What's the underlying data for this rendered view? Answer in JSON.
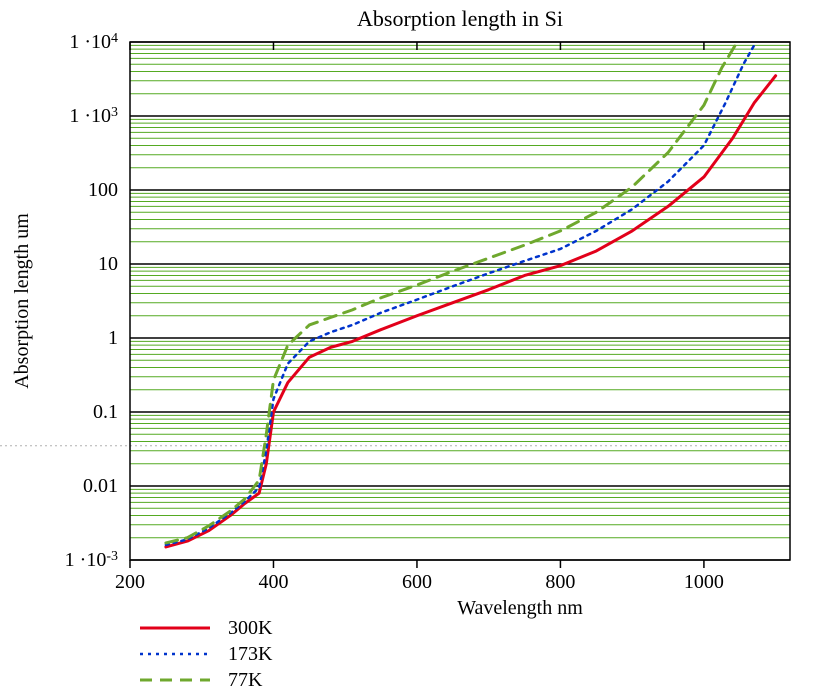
{
  "chart": {
    "type": "line",
    "title": "Absorption length in Si",
    "title_fontsize": 22,
    "xlabel": "Wavelength nm",
    "ylabel": "Absorption length um",
    "label_fontsize": 20,
    "tick_fontsize": 20,
    "legend_fontsize": 20,
    "background_color": "#ffffff",
    "plot_border_color": "#000000",
    "plot_border_width": 1.5,
    "minor_grid_color": "#55aa22",
    "minor_grid_width": 1,
    "major_grid_color": "#000000",
    "major_grid_width": 1.5,
    "x": {
      "min": 200,
      "max": 1120,
      "ticks": [
        200,
        400,
        600,
        800,
        1000
      ],
      "label_ticks": [
        200,
        400,
        600,
        800,
        1000
      ],
      "minor_ticks_top": [
        280,
        480,
        680,
        880,
        1080
      ]
    },
    "y": {
      "scale": "log",
      "min_exp": -3,
      "max_exp": 4,
      "major_exps": [
        -3,
        -2,
        -1,
        0,
        1,
        2,
        3,
        4
      ],
      "tick_labels": [
        "1 ·10⁻³",
        "0.01",
        "0.1",
        "1",
        "10",
        "100",
        "1 ·10³",
        "1 ·10⁴"
      ]
    },
    "dotted_ref_line_y": 0.035,
    "dotted_ref_color": "#b0b0b0",
    "series": [
      {
        "name": "300K",
        "color": "#e2001a",
        "width": 3,
        "dash": "none",
        "data": [
          [
            250,
            0.0015
          ],
          [
            280,
            0.0018
          ],
          [
            310,
            0.0025
          ],
          [
            340,
            0.004
          ],
          [
            360,
            0.0058
          ],
          [
            380,
            0.008
          ],
          [
            390,
            0.02
          ],
          [
            400,
            0.1
          ],
          [
            420,
            0.25
          ],
          [
            450,
            0.55
          ],
          [
            480,
            0.75
          ],
          [
            510,
            0.9
          ],
          [
            550,
            1.3
          ],
          [
            600,
            2.0
          ],
          [
            650,
            3.0
          ],
          [
            700,
            4.5
          ],
          [
            750,
            7.0
          ],
          [
            800,
            9.5
          ],
          [
            850,
            15
          ],
          [
            900,
            28
          ],
          [
            950,
            60
          ],
          [
            1000,
            150
          ],
          [
            1040,
            500
          ],
          [
            1070,
            1500
          ],
          [
            1100,
            3500
          ]
        ]
      },
      {
        "name": "173K",
        "color": "#0033cc",
        "width": 2.5,
        "dash": "dot",
        "data": [
          [
            250,
            0.0016
          ],
          [
            280,
            0.0019
          ],
          [
            310,
            0.0027
          ],
          [
            340,
            0.0043
          ],
          [
            360,
            0.0062
          ],
          [
            380,
            0.0095
          ],
          [
            390,
            0.03
          ],
          [
            400,
            0.15
          ],
          [
            420,
            0.45
          ],
          [
            450,
            0.9
          ],
          [
            480,
            1.2
          ],
          [
            510,
            1.5
          ],
          [
            550,
            2.2
          ],
          [
            600,
            3.3
          ],
          [
            650,
            5.0
          ],
          [
            700,
            7.5
          ],
          [
            750,
            11
          ],
          [
            800,
            16
          ],
          [
            850,
            28
          ],
          [
            900,
            55
          ],
          [
            950,
            130
          ],
          [
            1000,
            400
          ],
          [
            1030,
            1500
          ],
          [
            1055,
            5000
          ],
          [
            1070,
            9000
          ]
        ]
      },
      {
        "name": "77K",
        "color": "#6fa82e",
        "width": 3,
        "dash": "dash",
        "data": [
          [
            250,
            0.0017
          ],
          [
            280,
            0.002
          ],
          [
            310,
            0.0029
          ],
          [
            340,
            0.0046
          ],
          [
            360,
            0.0067
          ],
          [
            380,
            0.012
          ],
          [
            390,
            0.05
          ],
          [
            400,
            0.27
          ],
          [
            420,
            0.8
          ],
          [
            450,
            1.5
          ],
          [
            480,
            1.9
          ],
          [
            510,
            2.4
          ],
          [
            550,
            3.5
          ],
          [
            600,
            5.2
          ],
          [
            650,
            8.0
          ],
          [
            700,
            12
          ],
          [
            750,
            18
          ],
          [
            800,
            28
          ],
          [
            850,
            50
          ],
          [
            900,
            110
          ],
          [
            950,
            320
          ],
          [
            1000,
            1400
          ],
          [
            1025,
            4500
          ],
          [
            1045,
            9500
          ]
        ]
      }
    ],
    "legend": {
      "x": 210,
      "y_start": 628,
      "row_gap": 26,
      "swatch_len": 70
    }
  }
}
